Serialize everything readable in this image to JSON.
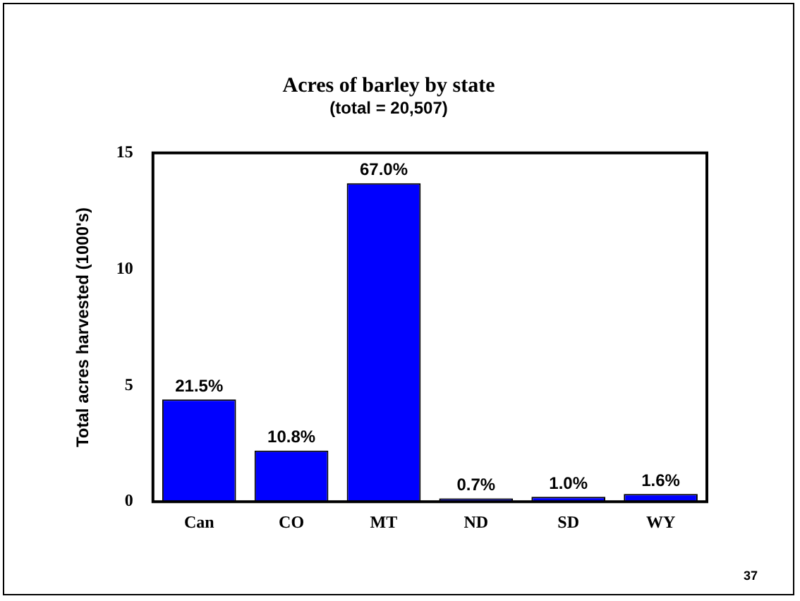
{
  "chart_data": {
    "type": "bar",
    "title": "Acres of barley by state",
    "subtitle": "(total = 20,507)",
    "ylabel": "Total acres harvested (1000's)",
    "categories": [
      "Can",
      "CO",
      "MT",
      "ND",
      "SD",
      "WY"
    ],
    "values": [
      4.4,
      2.2,
      13.7,
      0.14,
      0.21,
      0.33
    ],
    "color": "#0000ff",
    "ylim": [
      0,
      15
    ],
    "yticks": [
      0,
      5,
      10,
      15
    ],
    "grid": false,
    "legend": false,
    "annotations": [
      {
        "text": "21.5%",
        "x": "Can",
        "y": 4.4
      },
      {
        "text": "10.8%",
        "x": "CO",
        "y": 2.2
      },
      {
        "text": "67.0%",
        "x": "MT",
        "y": 13.7
      },
      {
        "text": "0.7%",
        "x": "ND",
        "y": 0.14
      },
      {
        "text": "1.0%",
        "x": "SD",
        "y": 0.21
      },
      {
        "text": "1.6%",
        "x": "WY",
        "y": 0.33
      },
      "37"
    ]
  }
}
